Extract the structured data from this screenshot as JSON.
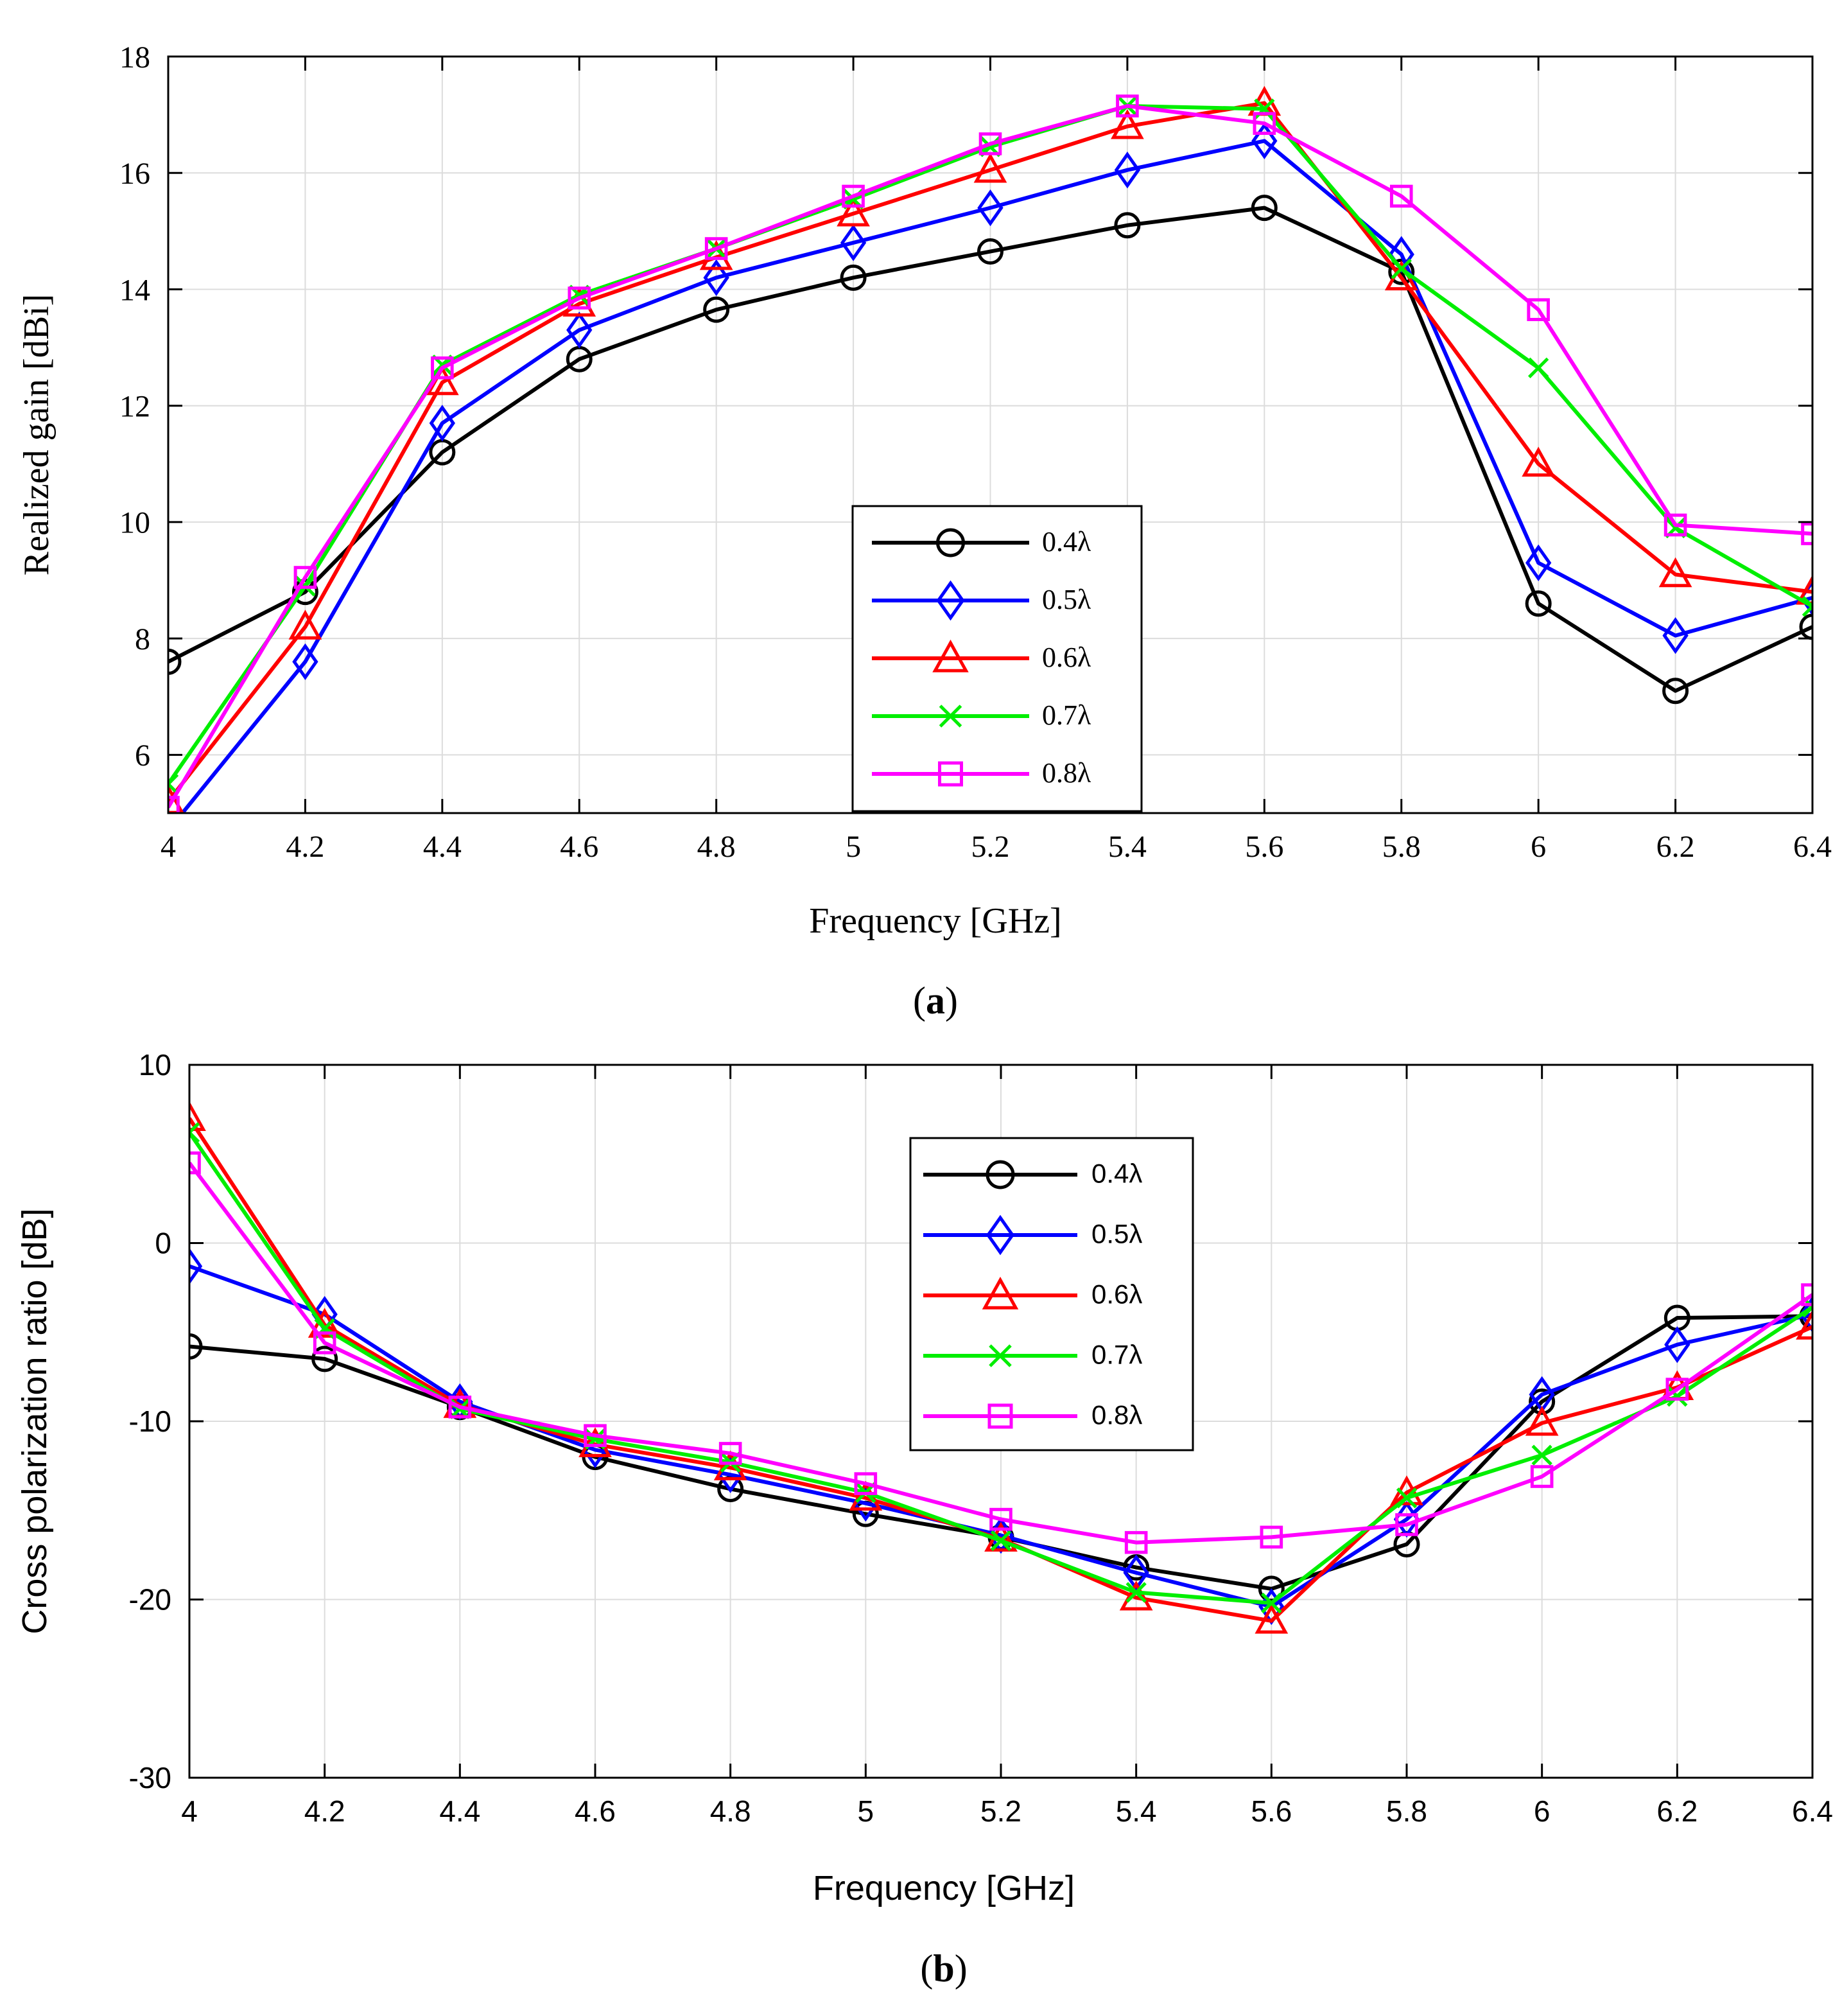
{
  "panels": [
    {
      "caption_letter": "a",
      "chart_data": {
        "type": "line",
        "title": "",
        "xlabel": "Frequency [GHz]",
        "ylabel": "Realized gain [dBi]",
        "xlim": [
          4,
          6.4
        ],
        "ylim": [
          5,
          18
        ],
        "xticks": [
          4,
          4.2,
          4.4,
          4.6,
          4.8,
          5,
          5.2,
          5.4,
          5.6,
          5.8,
          6,
          6.2,
          6.4
        ],
        "xtick_labels": [
          "4",
          "4.2",
          "4.4",
          "4.6",
          "4.8",
          "5",
          "5.2",
          "5.4",
          "5.6",
          "5.8",
          "6",
          "6.2",
          "6.4"
        ],
        "yticks": [
          6,
          8,
          10,
          12,
          14,
          16,
          18
        ],
        "ytick_labels": [
          "6",
          "8",
          "10",
          "12",
          "14",
          "16",
          "18"
        ],
        "grid": true,
        "legend_position": "center-bottom",
        "x": [
          4,
          4.2,
          4.4,
          4.6,
          4.8,
          5,
          5.2,
          5.4,
          5.6,
          5.8,
          6,
          6.2,
          6.4
        ],
        "series": [
          {
            "name": "0.4λ",
            "color": "#000000",
            "marker": "circle",
            "values": [
              7.6,
              8.8,
              11.2,
              12.8,
              13.65,
              14.2,
              14.65,
              15.1,
              15.4,
              14.3,
              8.6,
              7.1,
              8.2
            ]
          },
          {
            "name": "0.5λ",
            "color": "#0000ff",
            "marker": "diamond",
            "values": [
              4.7,
              7.6,
              11.7,
              13.3,
              14.2,
              14.8,
              15.4,
              16.05,
              16.55,
              14.6,
              9.3,
              8.05,
              8.7
            ]
          },
          {
            "name": "0.6λ",
            "color": "#ff0000",
            "marker": "triangle",
            "values": [
              5.2,
              8.2,
              12.4,
              13.75,
              14.55,
              15.3,
              16.05,
              16.8,
              17.2,
              14.2,
              11.0,
              9.1,
              8.8
            ]
          },
          {
            "name": "0.7λ",
            "color": "#00ee00",
            "marker": "x",
            "values": [
              5.5,
              8.9,
              12.7,
              13.9,
              14.7,
              15.55,
              16.45,
              17.15,
              17.1,
              14.35,
              12.65,
              9.9,
              8.55
            ]
          },
          {
            "name": "0.8λ",
            "color": "#ff00ff",
            "marker": "square",
            "values": [
              5.1,
              9.05,
              12.65,
              13.85,
              14.7,
              15.6,
              16.5,
              17.15,
              16.85,
              15.6,
              13.65,
              9.95,
              9.8
            ]
          }
        ]
      }
    },
    {
      "caption_letter": "b",
      "chart_data": {
        "type": "line",
        "title": "",
        "xlabel": "Frequency [GHz]",
        "ylabel": "Cross polarization ratio [dB]",
        "xlim": [
          4,
          6.4
        ],
        "ylim": [
          -30,
          10
        ],
        "xticks": [
          4,
          4.2,
          4.4,
          4.6,
          4.8,
          5,
          5.2,
          5.4,
          5.6,
          5.8,
          6,
          6.2,
          6.4
        ],
        "xtick_labels": [
          "4",
          "4.2",
          "4.4",
          "4.6",
          "4.8",
          "5",
          "5.2",
          "5.4",
          "5.6",
          "5.8",
          "6",
          "6.2",
          "6.4"
        ],
        "yticks": [
          -30,
          -20,
          -10,
          0,
          10
        ],
        "ytick_labels": [
          "-30",
          "-20",
          "-10",
          "0",
          "10"
        ],
        "grid": true,
        "legend_position": "top-center",
        "x": [
          4,
          4.2,
          4.4,
          4.6,
          4.8,
          5,
          5.2,
          5.4,
          5.6,
          5.8,
          6,
          6.2,
          6.4
        ],
        "series": [
          {
            "name": "0.4λ",
            "color": "#000000",
            "marker": "circle",
            "values": [
              -5.8,
              -6.5,
              -9.2,
              -12.0,
              -13.8,
              -15.2,
              -16.5,
              -18.2,
              -19.4,
              -16.9,
              -8.9,
              -4.2,
              -4.1
            ]
          },
          {
            "name": "0.5λ",
            "color": "#0000ff",
            "marker": "diamond",
            "values": [
              -1.3,
              -4.0,
              -8.9,
              -11.6,
              -13.0,
              -14.6,
              -16.4,
              -18.5,
              -20.4,
              -15.5,
              -8.5,
              -5.7,
              -4.0
            ]
          },
          {
            "name": "0.6λ",
            "color": "#ff0000",
            "marker": "triangle",
            "values": [
              7.0,
              -4.6,
              -9.1,
              -11.3,
              -12.6,
              -14.3,
              -16.6,
              -19.9,
              -21.2,
              -14.0,
              -10.1,
              -8.1,
              -4.7
            ]
          },
          {
            "name": "0.7λ",
            "color": "#00ee00",
            "marker": "x",
            "values": [
              6.2,
              -4.8,
              -9.3,
              -11.0,
              -12.3,
              -14.0,
              -16.7,
              -19.6,
              -20.2,
              -14.3,
              -11.9,
              -8.6,
              -3.6
            ]
          },
          {
            "name": "0.8λ",
            "color": "#ff00ff",
            "marker": "square",
            "values": [
              4.5,
              -5.6,
              -9.2,
              -10.8,
              -11.8,
              -13.5,
              -15.5,
              -16.8,
              -16.5,
              -15.8,
              -13.1,
              -8.2,
              -2.9
            ]
          }
        ]
      }
    }
  ]
}
